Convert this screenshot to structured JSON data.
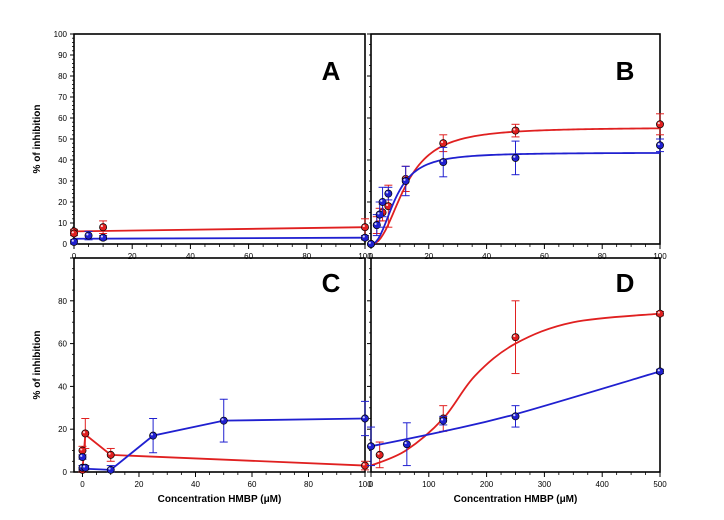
{
  "chart_data": [
    {
      "type": "scatter",
      "panel_letter": "A",
      "xlim": [
        0,
        100
      ],
      "ylim": [
        0,
        100
      ],
      "xticks": [
        "0",
        "20",
        "40",
        "60",
        "80",
        "100"
      ],
      "yticks": [
        "0",
        "10",
        "20",
        "30",
        "40",
        "50",
        "60",
        "70",
        "80",
        "90",
        "100"
      ],
      "ylabel": "% of inhibition",
      "xlabel": "",
      "series": [
        {
          "color": "#e02020",
          "x": [
            0,
            0,
            10,
            100
          ],
          "y": [
            6,
            5,
            8,
            8
          ],
          "err": [
            1,
            1,
            3,
            4
          ],
          "curve_x": [
            0,
            100
          ],
          "curve_y": [
            6,
            8
          ]
        },
        {
          "color": "#2020d0",
          "x": [
            0,
            5,
            10,
            100
          ],
          "y": [
            1,
            4,
            3,
            3
          ],
          "err": [
            1,
            2,
            1,
            1
          ],
          "curve_x": [
            0,
            100
          ],
          "curve_y": [
            2.5,
            3
          ]
        }
      ]
    },
    {
      "type": "scatter",
      "panel_letter": "B",
      "xlim": [
        0,
        100
      ],
      "ylim": [
        0,
        100
      ],
      "xticks": [
        "0",
        "20",
        "40",
        "60",
        "80",
        "100"
      ],
      "yticks": [],
      "ylabel": "",
      "xlabel": "",
      "series": [
        {
          "color": "#e02020",
          "x": [
            0,
            2,
            3,
            4,
            6,
            12,
            25,
            50,
            100
          ],
          "y": [
            0,
            9,
            14,
            15,
            18,
            31,
            48,
            54,
            57
          ],
          "err": [
            0,
            4,
            3,
            4,
            10,
            6,
            4,
            3,
            5
          ],
          "curve_fn": "hill",
          "vmax": 55.5,
          "k": 12,
          "n": 2.3
        },
        {
          "color": "#2020d0",
          "x": [
            0,
            2,
            3,
            4,
            6,
            12,
            25,
            50,
            100
          ],
          "y": [
            0,
            9,
            14,
            20,
            24,
            30,
            39,
            41,
            47
          ],
          "err": [
            0,
            5,
            6,
            7,
            3,
            7,
            7,
            8,
            3
          ],
          "curve_fn": "hill",
          "vmax": 43.5,
          "k": 8.5,
          "n": 2.3
        }
      ]
    },
    {
      "type": "line",
      "panel_letter": "C",
      "xlim": [
        -3,
        100
      ],
      "ylim": [
        0,
        100
      ],
      "xticks": [
        "0",
        "20",
        "40",
        "60",
        "80",
        "100"
      ],
      "yticks": [
        "0",
        "20",
        "40",
        "60",
        "80"
      ],
      "ylabel": "% of inhibition",
      "xlabel": "Concentration HMBP (μM)",
      "series": [
        {
          "color": "#e02020",
          "x": [
            0,
            0,
            1,
            10,
            100
          ],
          "y": [
            10,
            1,
            18,
            8,
            3
          ],
          "err": [
            2,
            1,
            7,
            3,
            2
          ],
          "curve_x": [
            0,
            1,
            10,
            100
          ],
          "curve_y": [
            1,
            17.5,
            8,
            3
          ]
        },
        {
          "color": "#2020d0",
          "x": [
            0,
            0,
            1,
            10,
            25,
            50,
            100
          ],
          "y": [
            7,
            2,
            2,
            1,
            17,
            24,
            25
          ],
          "err": [
            1,
            1,
            1,
            2,
            8,
            10,
            8
          ],
          "curve_x": [
            0,
            1,
            10,
            25,
            50,
            100
          ],
          "curve_y": [
            2,
            1.5,
            1,
            17,
            24,
            25
          ]
        }
      ]
    },
    {
      "type": "line",
      "panel_letter": "D",
      "xlim": [
        0,
        500
      ],
      "ylim": [
        0,
        100
      ],
      "xticks": [
        "0",
        "100",
        "200",
        "300",
        "400",
        "500"
      ],
      "yticks": [],
      "ylabel": "",
      "xlabel": "Concentration HMBP (μM)",
      "series": [
        {
          "color": "#e02020",
          "x": [
            15,
            125,
            250,
            500
          ],
          "y": [
            8,
            25,
            63,
            74
          ],
          "err": [
            6,
            6,
            17,
            1
          ],
          "curve_x": [
            0,
            60,
            125,
            180,
            250,
            350,
            500
          ],
          "curve_y": [
            3,
            10,
            25,
            45,
            60,
            70,
            74
          ]
        },
        {
          "color": "#2020d0",
          "x": [
            0,
            62,
            125,
            250,
            500
          ],
          "y": [
            12,
            13,
            24,
            26,
            47
          ],
          "err": [
            9,
            10,
            2,
            5,
            1
          ],
          "curve_x": [
            0,
            125,
            250,
            500
          ],
          "curve_y": [
            12,
            19,
            27,
            47
          ]
        }
      ]
    }
  ]
}
